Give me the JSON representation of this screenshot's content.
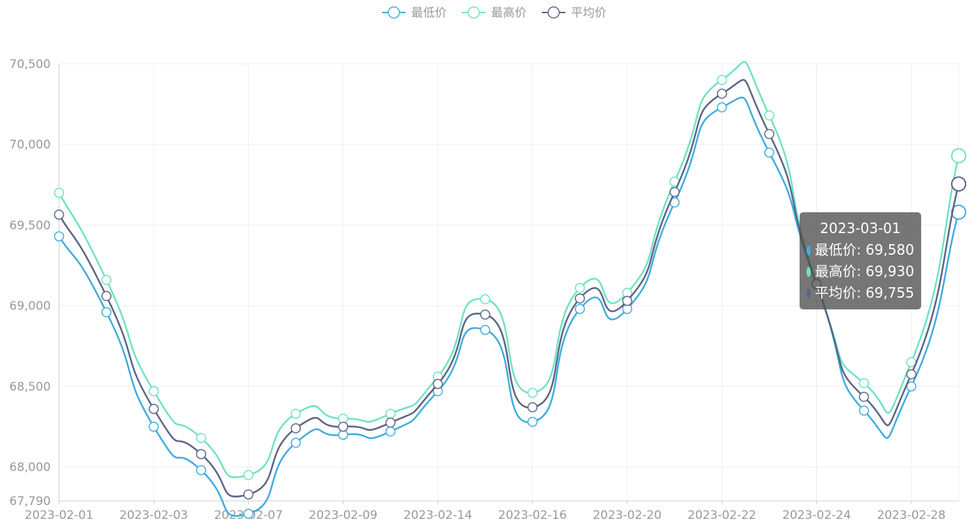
{
  "chart_data": {
    "type": "line",
    "smooth": true,
    "x": [
      "2023-02-01",
      "2023-02-02",
      "2023-02-03",
      "2023-02-06",
      "2023-02-07",
      "2023-02-08",
      "2023-02-09",
      "2023-02-10",
      "2023-02-14",
      "2023-02-15",
      "2023-02-16",
      "2023-02-17",
      "2023-02-20",
      "2023-02-21",
      "2023-02-22",
      "2023-02-23",
      "2023-02-24",
      "2023-02-27",
      "2023-02-28",
      "2023-03-01"
    ],
    "x_tick_labels": [
      "2023-02-01",
      "2023-02-03",
      "2023-02-07",
      "2023-02-09",
      "2023-02-14",
      "2023-02-16",
      "2023-02-20",
      "2023-02-22",
      "2023-02-24",
      "2023-02-28"
    ],
    "series": [
      {
        "name": "最低价",
        "color": "#40ace0",
        "values": [
          69430,
          68960,
          68250,
          67980,
          67710,
          68150,
          68200,
          68220,
          68470,
          68850,
          68280,
          68980,
          68980,
          69640,
          70230,
          69950,
          69130,
          68350,
          68500,
          69580
        ]
      },
      {
        "name": "最高价",
        "color": "#6fe3c2",
        "values": [
          69700,
          69160,
          68470,
          68180,
          67950,
          68330,
          68300,
          68330,
          68560,
          69040,
          68460,
          69110,
          69080,
          69770,
          70400,
          70180,
          69140,
          68520,
          68650,
          69930
        ]
      },
      {
        "name": "平均价",
        "color": "#5d6585",
        "values": [
          69565,
          69060,
          68360,
          68080,
          67830,
          68240,
          68250,
          68275,
          68515,
          68945,
          68370,
          69045,
          69030,
          69705,
          70315,
          70065,
          69135,
          68435,
          68575,
          69755
        ]
      }
    ],
    "yticks": [
      67790,
      68000,
      68500,
      69000,
      69500,
      70000,
      70500
    ],
    "ytick_labels": [
      "67,790",
      "68,000",
      "68,500",
      "69,000",
      "69,500",
      "70,000",
      "70,500"
    ],
    "ylim": [
      67790,
      70500
    ],
    "grid": true,
    "legend_position": "top-center"
  },
  "tooltip": {
    "title": "2023-03-01",
    "rows": [
      {
        "label": "最低价: 69,580",
        "color": "#40ace0"
      },
      {
        "label": "最高价: 69,930",
        "color": "#6fe3c2"
      },
      {
        "label": "平均价: 69,755",
        "color": "#5d6585"
      }
    ]
  }
}
